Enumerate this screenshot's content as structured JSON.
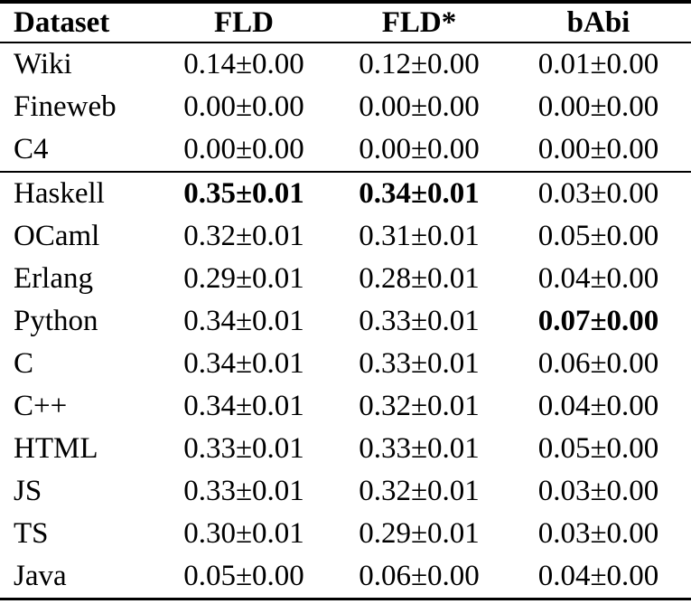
{
  "table": {
    "columns": [
      "Dataset",
      "FLD",
      "FLD*",
      "bAbi"
    ],
    "groups": [
      {
        "rows": [
          {
            "dataset": "Wiki",
            "values": [
              "0.14±0.00",
              "0.12±0.00",
              "0.01±0.00"
            ],
            "bold": [
              false,
              false,
              false
            ]
          },
          {
            "dataset": "Fineweb",
            "values": [
              "0.00±0.00",
              "0.00±0.00",
              "0.00±0.00"
            ],
            "bold": [
              false,
              false,
              false
            ]
          },
          {
            "dataset": "C4",
            "values": [
              "0.00±0.00",
              "0.00±0.00",
              "0.00±0.00"
            ],
            "bold": [
              false,
              false,
              false
            ]
          }
        ]
      },
      {
        "rows": [
          {
            "dataset": "Haskell",
            "values": [
              "0.35±0.01",
              "0.34±0.01",
              "0.03±0.00"
            ],
            "bold": [
              true,
              true,
              false
            ]
          },
          {
            "dataset": "OCaml",
            "values": [
              "0.32±0.01",
              "0.31±0.01",
              "0.05±0.00"
            ],
            "bold": [
              false,
              false,
              false
            ]
          },
          {
            "dataset": "Erlang",
            "values": [
              "0.29±0.01",
              "0.28±0.01",
              "0.04±0.00"
            ],
            "bold": [
              false,
              false,
              false
            ]
          },
          {
            "dataset": "Python",
            "values": [
              "0.34±0.01",
              "0.33±0.01",
              "0.07±0.00"
            ],
            "bold": [
              false,
              false,
              true
            ]
          },
          {
            "dataset": "C",
            "values": [
              "0.34±0.01",
              "0.33±0.01",
              "0.06±0.00"
            ],
            "bold": [
              false,
              false,
              false
            ]
          },
          {
            "dataset": "C++",
            "values": [
              "0.34±0.01",
              "0.32±0.01",
              "0.04±0.00"
            ],
            "bold": [
              false,
              false,
              false
            ]
          },
          {
            "dataset": "HTML",
            "values": [
              "0.33±0.01",
              "0.33±0.01",
              "0.05±0.00"
            ],
            "bold": [
              false,
              false,
              false
            ]
          },
          {
            "dataset": "JS",
            "values": [
              "0.33±0.01",
              "0.32±0.01",
              "0.03±0.00"
            ],
            "bold": [
              false,
              false,
              false
            ]
          },
          {
            "dataset": "TS",
            "values": [
              "0.30±0.01",
              "0.29±0.01",
              "0.03±0.00"
            ],
            "bold": [
              false,
              false,
              false
            ]
          },
          {
            "dataset": "Java",
            "values": [
              "0.05±0.00",
              "0.06±0.00",
              "0.04±0.00"
            ],
            "bold": [
              false,
              false,
              false
            ]
          }
        ]
      }
    ],
    "colors": {
      "text": "#000000",
      "background": "#ffffff",
      "rule": "#000000"
    }
  }
}
